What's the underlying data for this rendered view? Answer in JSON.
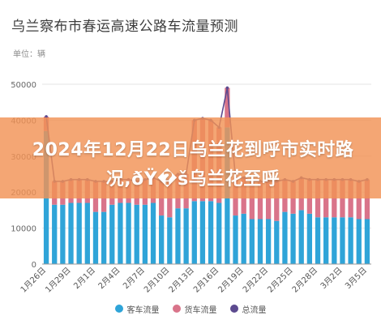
{
  "headline": "2024年12月22日乌兰花到呼市实时路况,ðŸ�š乌兰花至呼",
  "chart_data": {
    "type": "bar",
    "title": "乌兰察布市春运高速公路车流量预测",
    "unit_label": "单位：辆",
    "ylim": [
      0,
      50000
    ],
    "yticks": [
      "0",
      "10000",
      "20000",
      "30000",
      "40000",
      "50000"
    ],
    "xtick_labels": [
      "1月26日",
      "1月29日",
      "2月1日",
      "2月4日",
      "2月7日",
      "2月10日",
      "2月13日",
      "2月16日",
      "2月19日",
      "2月22日",
      "2月25日",
      "2月28日",
      "3月2日",
      "3月5日"
    ],
    "categories": [
      "1月26日",
      "1月27日",
      "1月28日",
      "1月29日",
      "1月30日",
      "1月31日",
      "2月1日",
      "2月2日",
      "2月3日",
      "2月4日",
      "2月5日",
      "2月6日",
      "2月7日",
      "2月8日",
      "2月9日",
      "2月10日",
      "2月11日",
      "2月12日",
      "2月13日",
      "2月14日",
      "2月15日",
      "2月16日",
      "2月17日",
      "2月18日",
      "2月19日",
      "2月20日",
      "2月21日",
      "2月22日",
      "2月23日",
      "2月24日",
      "2月25日",
      "2月26日",
      "2月27日",
      "2月28日",
      "3月1日",
      "3月2日",
      "3月3日",
      "3月4日",
      "3月5日",
      "3月6日"
    ],
    "series": [
      {
        "name": "客车流量",
        "color": "#2fa4d8",
        "values": [
          37000,
          16500,
          16500,
          17000,
          17000,
          17000,
          14500,
          14500,
          16500,
          17000,
          17000,
          16500,
          16500,
          17000,
          13500,
          13000,
          15500,
          15500,
          17500,
          17500,
          17500,
          17000,
          38000,
          13500,
          14000,
          12500,
          12500,
          12500,
          12000,
          14500,
          14000,
          15000,
          14000,
          13000,
          13000,
          13000,
          13000,
          13000,
          12500,
          12500
        ]
      },
      {
        "name": "货车流量",
        "color": "#d9748a",
        "values": [
          4000,
          6500,
          6500,
          6500,
          6500,
          6500,
          8500,
          8500,
          6500,
          6500,
          6500,
          6500,
          7000,
          7000,
          9500,
          10500,
          9500,
          9500,
          22500,
          23000,
          22500,
          21000,
          11000,
          10500,
          10000,
          10500,
          10500,
          10500,
          11000,
          9000,
          9000,
          9000,
          9500,
          10500,
          10500,
          10500,
          10500,
          10500,
          10500,
          11000
        ]
      },
      {
        "name": "总流量",
        "color": "#5c4a8f",
        "values": [
          41000,
          23000,
          23000,
          23500,
          23500,
          23500,
          23000,
          23000,
          23000,
          23500,
          23500,
          23000,
          23500,
          24000,
          23000,
          23500,
          25000,
          25000,
          40000,
          40500,
          40000,
          38000,
          49000,
          24000,
          24000,
          23000,
          23000,
          23000,
          23000,
          23500,
          23000,
          24000,
          23500,
          23500,
          23500,
          23500,
          23500,
          23500,
          23000,
          23500
        ]
      }
    ],
    "grid": "horizontal",
    "legend_position": "bottom-center"
  },
  "legend": [
    "客车流量",
    "货车流量",
    "总流量"
  ]
}
